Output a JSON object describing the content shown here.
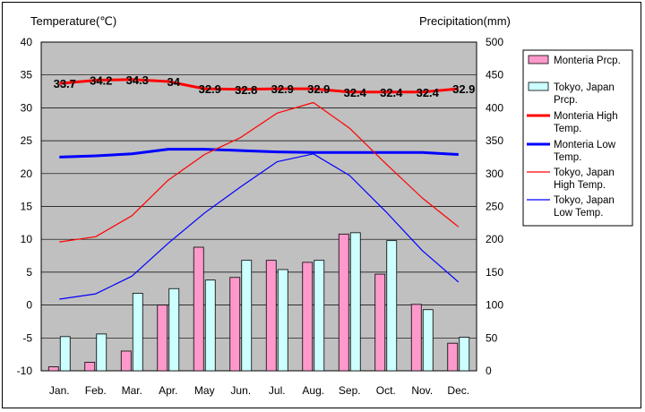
{
  "chart_data": {
    "type": "bar",
    "title": "",
    "categories": [
      "Jan.",
      "Feb.",
      "Mar.",
      "Apr.",
      "May",
      "Jun.",
      "Jul.",
      "Aug.",
      "Sep.",
      "Oct.",
      "Nov.",
      "Dec."
    ],
    "y_left": {
      "label": "Temperature(℃)",
      "ylim": [
        -10,
        40
      ],
      "ticks": [
        "-10",
        "-5",
        "0",
        "5",
        "10",
        "15",
        "20",
        "25",
        "30",
        "35",
        "40"
      ]
    },
    "y_right": {
      "label": "Precipitation(mm)",
      "ylim": [
        0,
        500
      ],
      "ticks": [
        "0",
        "50",
        "100",
        "150",
        "200",
        "250",
        "300",
        "350",
        "400",
        "450",
        "500"
      ]
    },
    "grid": true,
    "legend_placement": "right",
    "bar_series": [
      {
        "name": "Monteria Prcp.",
        "axis": "right",
        "color": "#ff99cc",
        "values": [
          6,
          13,
          30,
          100,
          188,
          142,
          168,
          165,
          208,
          147,
          101,
          42
        ]
      },
      {
        "name": "Tokyo, Japan Prcp.",
        "axis": "right",
        "color": "#ccffff",
        "values": [
          52,
          56,
          118,
          125,
          138,
          168,
          154,
          168,
          210,
          198,
          93,
          51
        ]
      }
    ],
    "line_series": [
      {
        "name": "Monteria High Temp.",
        "axis": "left",
        "color": "#ff0000",
        "thick": true,
        "values": [
          33.7,
          34.2,
          34.3,
          34,
          32.9,
          32.8,
          32.9,
          32.9,
          32.4,
          32.4,
          32.4,
          32.9
        ],
        "labels": [
          "33.7",
          "34.2",
          "34.3",
          "34",
          "32.9",
          "32.8",
          "32.9",
          "32.9",
          "32.4",
          "32.4",
          "32.4",
          "32.9"
        ]
      },
      {
        "name": "Monteria Low Temp.",
        "axis": "left",
        "color": "#0000ff",
        "thick": true,
        "values": [
          22.5,
          22.7,
          23,
          23.7,
          23.7,
          23.5,
          23.3,
          23.2,
          23.2,
          23.2,
          23.2,
          22.9
        ]
      },
      {
        "name": "Tokyo, Japan High Temp.",
        "axis": "left",
        "color": "#ff0000",
        "thick": false,
        "values": [
          9.6,
          10.4,
          13.6,
          19,
          22.9,
          25.5,
          29.2,
          30.8,
          26.9,
          21.5,
          16.3,
          11.9
        ]
      },
      {
        "name": "Tokyo, Japan Low Temp.",
        "axis": "left",
        "color": "#0000ff",
        "thick": false,
        "values": [
          0.9,
          1.7,
          4.4,
          9.4,
          14,
          18,
          21.8,
          23,
          19.7,
          14.2,
          8.3,
          3.5
        ]
      }
    ],
    "legend": [
      {
        "line1": "Monteria Prcp.",
        "line2": ""
      },
      {
        "line1": "Tokyo, Japan",
        "line2": "Prcp."
      },
      {
        "line1": "Monteria High",
        "line2": "Temp."
      },
      {
        "line1": "Monteria Low",
        "line2": "Temp."
      },
      {
        "line1": "Tokyo, Japan",
        "line2": "High Temp."
      },
      {
        "line1": "Tokyo, Japan",
        "line2": "Low Temp."
      }
    ]
  }
}
